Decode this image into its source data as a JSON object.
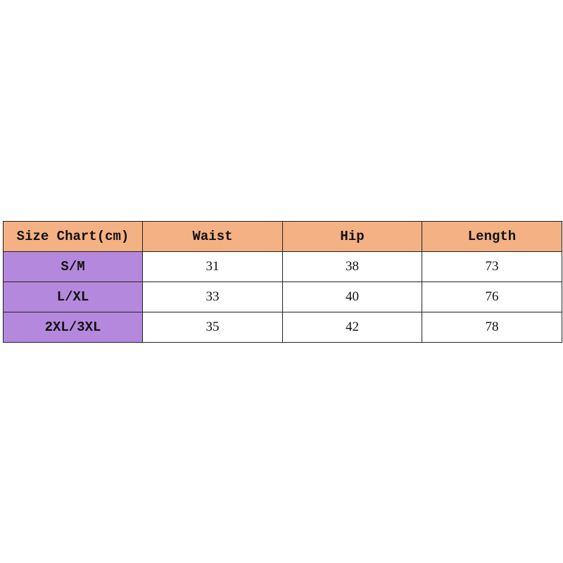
{
  "colors": {
    "header_bg": "#F4B183",
    "size_col_bg": "#B488DC",
    "border": "#222222"
  },
  "table": {
    "headers": [
      "Size Chart(cm)",
      "Waist",
      "Hip",
      "Length"
    ],
    "rows": [
      [
        "S/M",
        "31",
        "38",
        "73"
      ],
      [
        "L/XL",
        "33",
        "40",
        "76"
      ],
      [
        "2XL/3XL",
        "35",
        "42",
        "78"
      ]
    ]
  }
}
